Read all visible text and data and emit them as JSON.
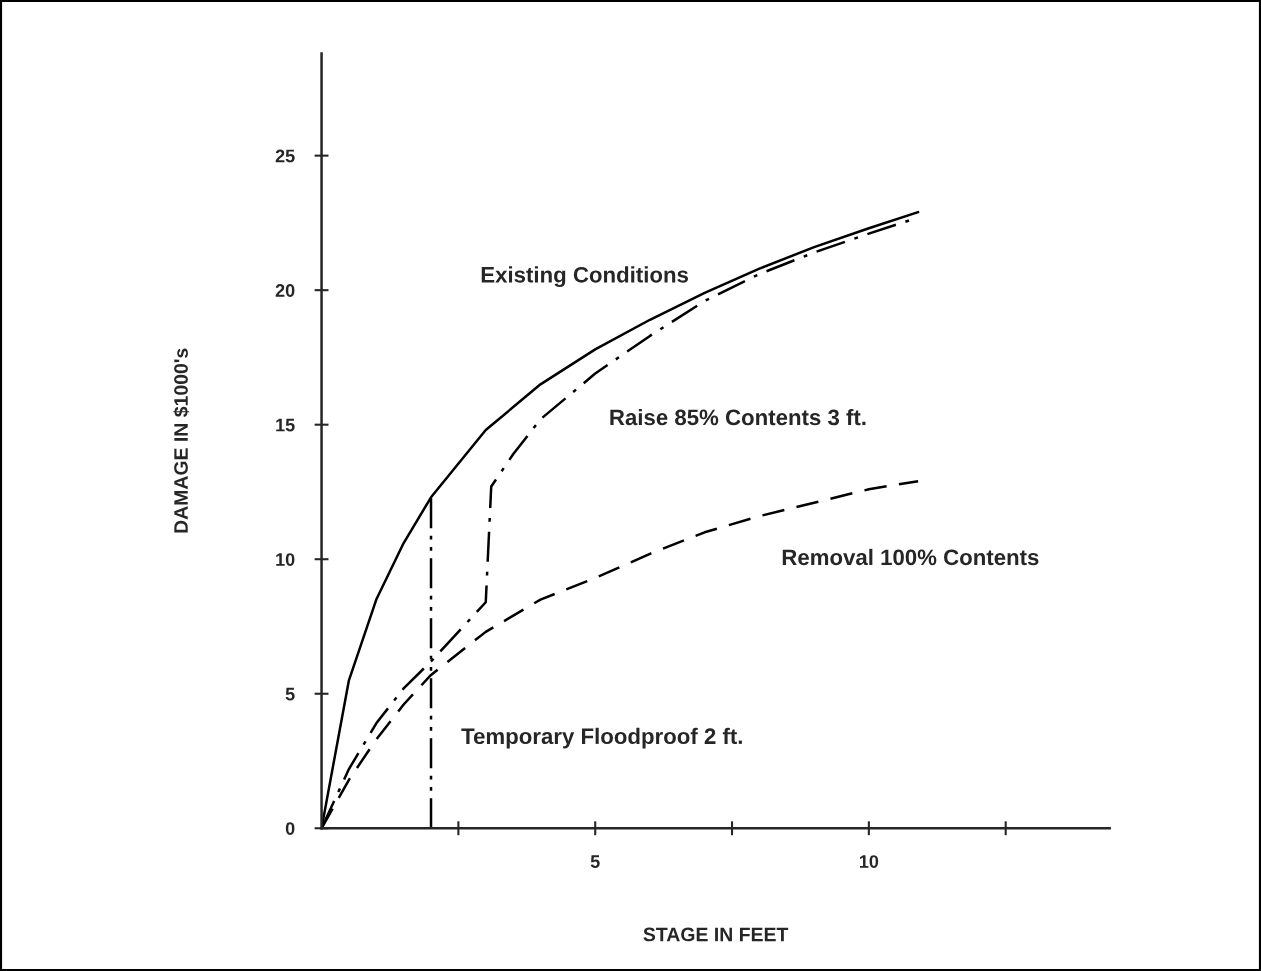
{
  "chart_data": {
    "type": "line",
    "xlabel": "STAGE IN FEET",
    "ylabel": "DAMAGE IN $1000's",
    "xlim": [
      0,
      14.4
    ],
    "ylim": [
      0,
      28.8
    ],
    "xticks": [
      {
        "value": 2.5,
        "label": null
      },
      5,
      {
        "value": 7.5,
        "label": null
      },
      10,
      {
        "value": 12.5,
        "label": null
      }
    ],
    "yticks": [
      0,
      5,
      10,
      15,
      20,
      25
    ],
    "grid": false,
    "legend": false,
    "series": [
      {
        "name": "Existing Conditions",
        "color": "#000000",
        "line_style": "solid",
        "x": [
          0,
          0.5,
          1,
          1.5,
          2,
          3,
          4,
          5,
          6,
          7,
          8,
          9,
          10,
          10.9
        ],
        "values": [
          0,
          5.5,
          8.5,
          10.6,
          12.3,
          14.8,
          16.5,
          17.8,
          18.9,
          19.9,
          20.8,
          21.6,
          22.3,
          22.9
        ]
      },
      {
        "name": "Raise 85% Contents 3 ft.",
        "color": "#000000",
        "line_style": "dashdot",
        "x": [
          0,
          0.5,
          1,
          1.5,
          2,
          2.5,
          3,
          3.1,
          3.5,
          4,
          5,
          6,
          7,
          8,
          9,
          10,
          10.9
        ],
        "values": [
          0,
          2.2,
          3.9,
          5.2,
          6.2,
          7.3,
          8.4,
          12.7,
          13.9,
          15.2,
          16.9,
          18.3,
          19.6,
          20.6,
          21.4,
          22.1,
          22.7
        ]
      },
      {
        "name": "Removal 100% Contents",
        "color": "#000000",
        "line_style": "dashed",
        "x": [
          0,
          0.5,
          1,
          1.5,
          2,
          3,
          4,
          5,
          6,
          7,
          8,
          9,
          10,
          10.9
        ],
        "values": [
          0,
          1.8,
          3.3,
          4.6,
          5.7,
          7.3,
          8.5,
          9.3,
          10.2,
          11.0,
          11.6,
          12.1,
          12.6,
          12.9
        ]
      },
      {
        "name": "Temporary Floodproof 2 ft.",
        "color": "#000000",
        "line_style": "dashdotdot",
        "x": [
          2,
          2
        ],
        "values": [
          0,
          12.3
        ]
      }
    ]
  }
}
